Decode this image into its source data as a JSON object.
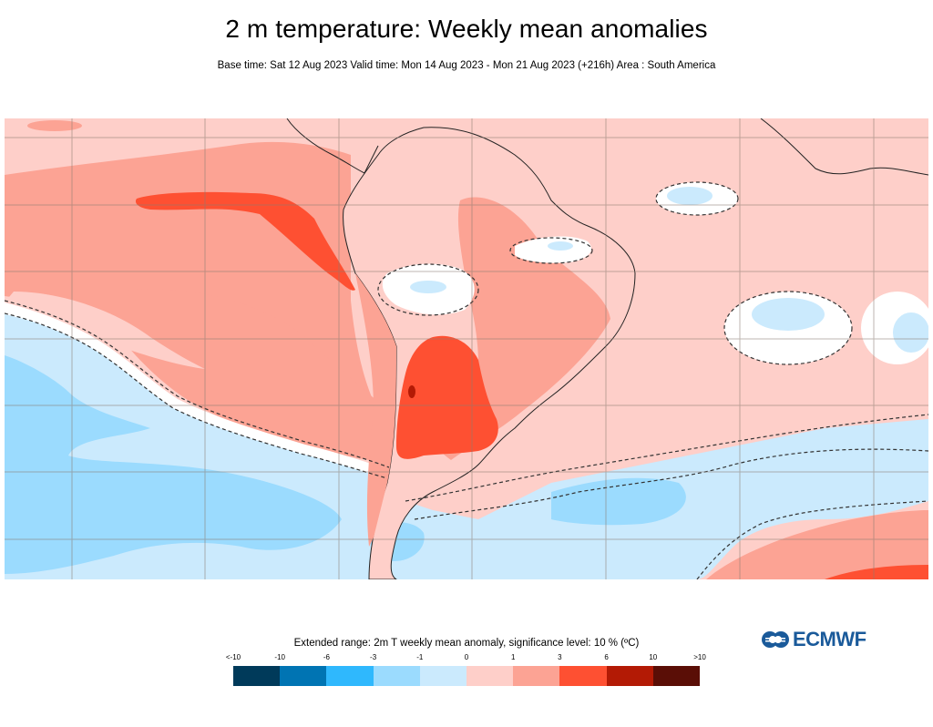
{
  "header": {
    "title": "2 m temperature: Weekly mean anomalies",
    "subtitle": "Base time: Sat 12 Aug 2023 Valid time: Mon 14 Aug 2023 - Mon 21 Aug 2023 (+216h) Area : South America"
  },
  "legend": {
    "title": "Extended range: 2m T weekly mean anomaly, significance level: 10 % (ºC)",
    "ticks": [
      "<-10",
      "-10",
      "-6",
      "-3",
      "-1",
      "0",
      "1",
      "3",
      "6",
      "10",
      ">10"
    ],
    "colors": [
      "#003a5a",
      "#0074b3",
      "#2fb8fd",
      "#9bdbfe",
      "#cbeafd",
      "#fecfc9",
      "#fca394",
      "#fe5032",
      "#b31a05",
      "#5a0e06"
    ]
  },
  "logo": {
    "text": "ECMWF",
    "color": "#1a5a9a"
  },
  "chart_data": {
    "type": "heatmap",
    "title": "2 m temperature: Weekly mean anomalies",
    "variable": "2m T weekly mean anomaly",
    "units": "ºC",
    "significance_level": "10 %",
    "area": "South America",
    "bins": [
      {
        "label": "<-10",
        "range": [
          null,
          -10
        ],
        "color": "#003a5a"
      },
      {
        "label": "-10 to -6",
        "range": [
          -10,
          -6
        ],
        "color": "#0074b3"
      },
      {
        "label": "-6 to -3",
        "range": [
          -6,
          -3
        ],
        "color": "#2fb8fd"
      },
      {
        "label": "-3 to -1",
        "range": [
          -3,
          -1
        ],
        "color": "#9bdbfe"
      },
      {
        "label": "-1 to 0",
        "range": [
          -1,
          0
        ],
        "color": "#cbeafd"
      },
      {
        "label": "0 to 1",
        "range": [
          0,
          1
        ],
        "color": "#fecfc9"
      },
      {
        "label": "1 to 3",
        "range": [
          1,
          3
        ],
        "color": "#fca394"
      },
      {
        "label": "3 to 6",
        "range": [
          3,
          6
        ],
        "color": "#fe5032"
      },
      {
        "label": "6 to 10",
        "range": [
          6,
          10
        ],
        "color": "#b31a05"
      },
      {
        "label": ">10",
        "range": [
          10,
          null
        ],
        "color": "#5a0e06"
      }
    ],
    "grid": true,
    "legend_position": "bottom"
  }
}
